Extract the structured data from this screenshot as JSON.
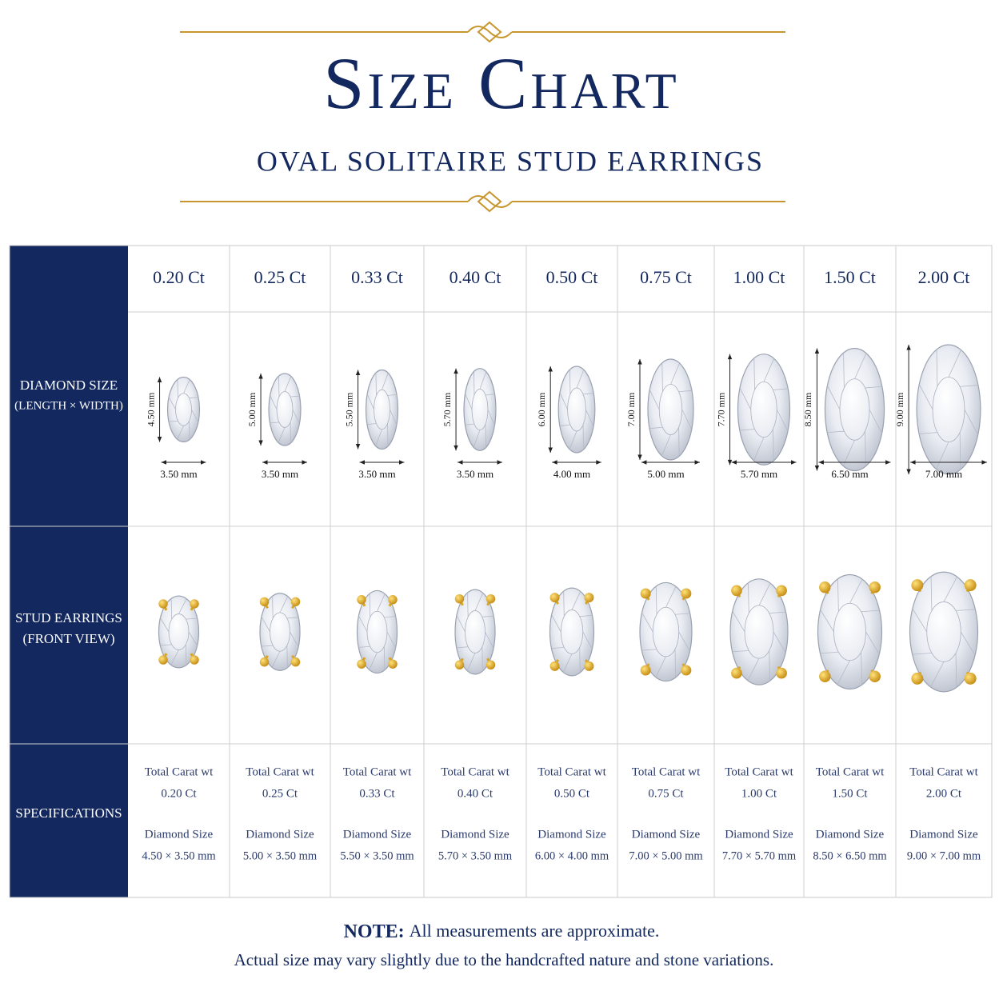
{
  "header": {
    "title": "Size Chart",
    "subtitle": "OVAL SOLITAIRE STUD EARRINGS"
  },
  "table": {
    "row_labels": [
      [
        "DIAMOND SIZE",
        "(LENGTH × WIDTH)"
      ],
      [
        "STUD EARRINGS",
        "(FRONT VIEW)"
      ],
      [
        "SPECIFICATIONS"
      ]
    ],
    "spec_captions": [
      "Total Carat wt",
      "Diamond Size"
    ],
    "columns": [
      {
        "carat": "0.20 Ct",
        "length": "4.50 mm",
        "width": "3.50 mm",
        "size": "4.50 × 3.50 mm"
      },
      {
        "carat": "0.25 Ct",
        "length": "5.00 mm",
        "width": "3.50 mm",
        "size": "5.00 × 3.50 mm"
      },
      {
        "carat": "0.33 Ct",
        "length": "5.50 mm",
        "width": "3.50 mm",
        "size": "5.50 × 3.50 mm"
      },
      {
        "carat": "0.40 Ct",
        "length": "5.70 mm",
        "width": "3.50 mm",
        "size": "5.70 × 3.50 mm"
      },
      {
        "carat": "0.50 Ct",
        "length": "6.00 mm",
        "width": "4.00 mm",
        "size": "6.00 × 4.00 mm"
      },
      {
        "carat": "0.75 Ct",
        "length": "7.00 mm",
        "width": "5.00 mm",
        "size": "7.00 × 5.00 mm"
      },
      {
        "carat": "1.00 Ct",
        "length": "7.70 mm",
        "width": "5.70 mm",
        "size": "7.70 × 5.70 mm"
      },
      {
        "carat": "1.50 Ct",
        "length": "8.50 mm",
        "width": "6.50 mm",
        "size": "8.50 × 6.50 mm"
      },
      {
        "carat": "2.00 Ct",
        "length": "9.00 mm",
        "width": "7.00 mm",
        "size": "9.00 × 7.00 mm"
      }
    ]
  },
  "note": {
    "label": "NOTE:",
    "text": "All measurements are approximate.",
    "detail": "Actual size may vary slightly due to the handcrafted nature and stone variations."
  }
}
